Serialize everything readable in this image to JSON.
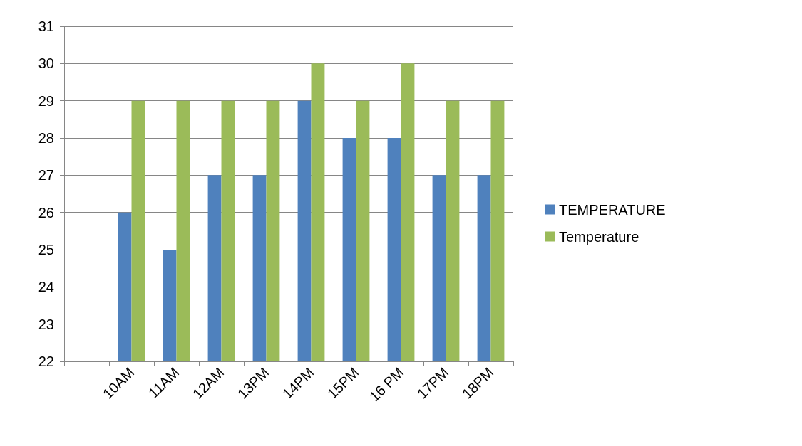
{
  "chart_data": {
    "type": "bar",
    "categories": [
      null,
      "10AM",
      "11AM",
      "12AM",
      "13PM",
      "14PM",
      "15PM",
      "16 PM",
      "17PM",
      "18PM"
    ],
    "series": [
      {
        "name": "TEMPERATURE",
        "color": "#4f81bd",
        "values": [
          null,
          26,
          25,
          27,
          27,
          29,
          28,
          28,
          27,
          27
        ]
      },
      {
        "name": "Temperature",
        "color": "#9bbb59",
        "values": [
          null,
          29,
          29,
          29,
          29,
          30,
          29,
          30,
          29,
          29
        ]
      }
    ],
    "ylim": [
      22,
      31
    ],
    "yticks": [
      22,
      23,
      24,
      25,
      26,
      27,
      28,
      29,
      30,
      31
    ],
    "grid": "y",
    "legend": "right"
  }
}
